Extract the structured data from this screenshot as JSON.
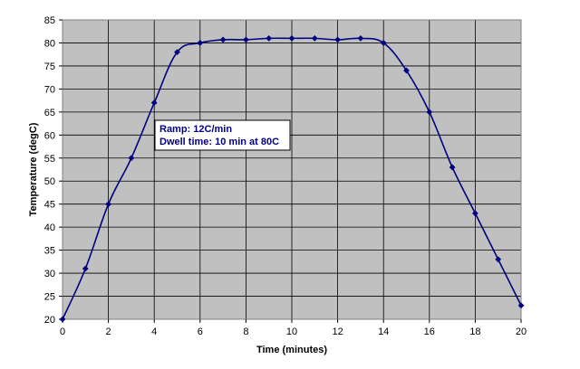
{
  "chart_data": {
    "type": "line",
    "title": "",
    "xlabel": "Time (minutes)",
    "ylabel": "Temperature (degC)",
    "xlim": [
      0,
      20
    ],
    "ylim": [
      20,
      85
    ],
    "x_ticks": [
      0,
      2,
      4,
      6,
      8,
      10,
      12,
      14,
      16,
      18,
      20
    ],
    "y_ticks": [
      20,
      25,
      30,
      35,
      40,
      45,
      50,
      55,
      60,
      65,
      70,
      75,
      80,
      85
    ],
    "grid": true,
    "legend": "none",
    "series": [
      {
        "x": [
          0,
          1,
          2,
          3,
          4,
          5,
          6,
          7,
          8,
          9,
          10,
          11,
          12,
          13,
          14,
          15,
          16,
          17,
          18,
          19,
          20
        ],
        "y": [
          20,
          31,
          45,
          55,
          67,
          78,
          80,
          80.7,
          80.7,
          81,
          81,
          81,
          80.7,
          81,
          80,
          74,
          65,
          53,
          43,
          33,
          23
        ],
        "color": "#000080",
        "marker": "diamond"
      }
    ],
    "annotations": [
      {
        "lines": [
          "Ramp: 12C/min",
          "Dwell time: 10 min at 80C"
        ]
      }
    ],
    "plot_background": "#c0c0c0",
    "grid_color": "#000000"
  }
}
